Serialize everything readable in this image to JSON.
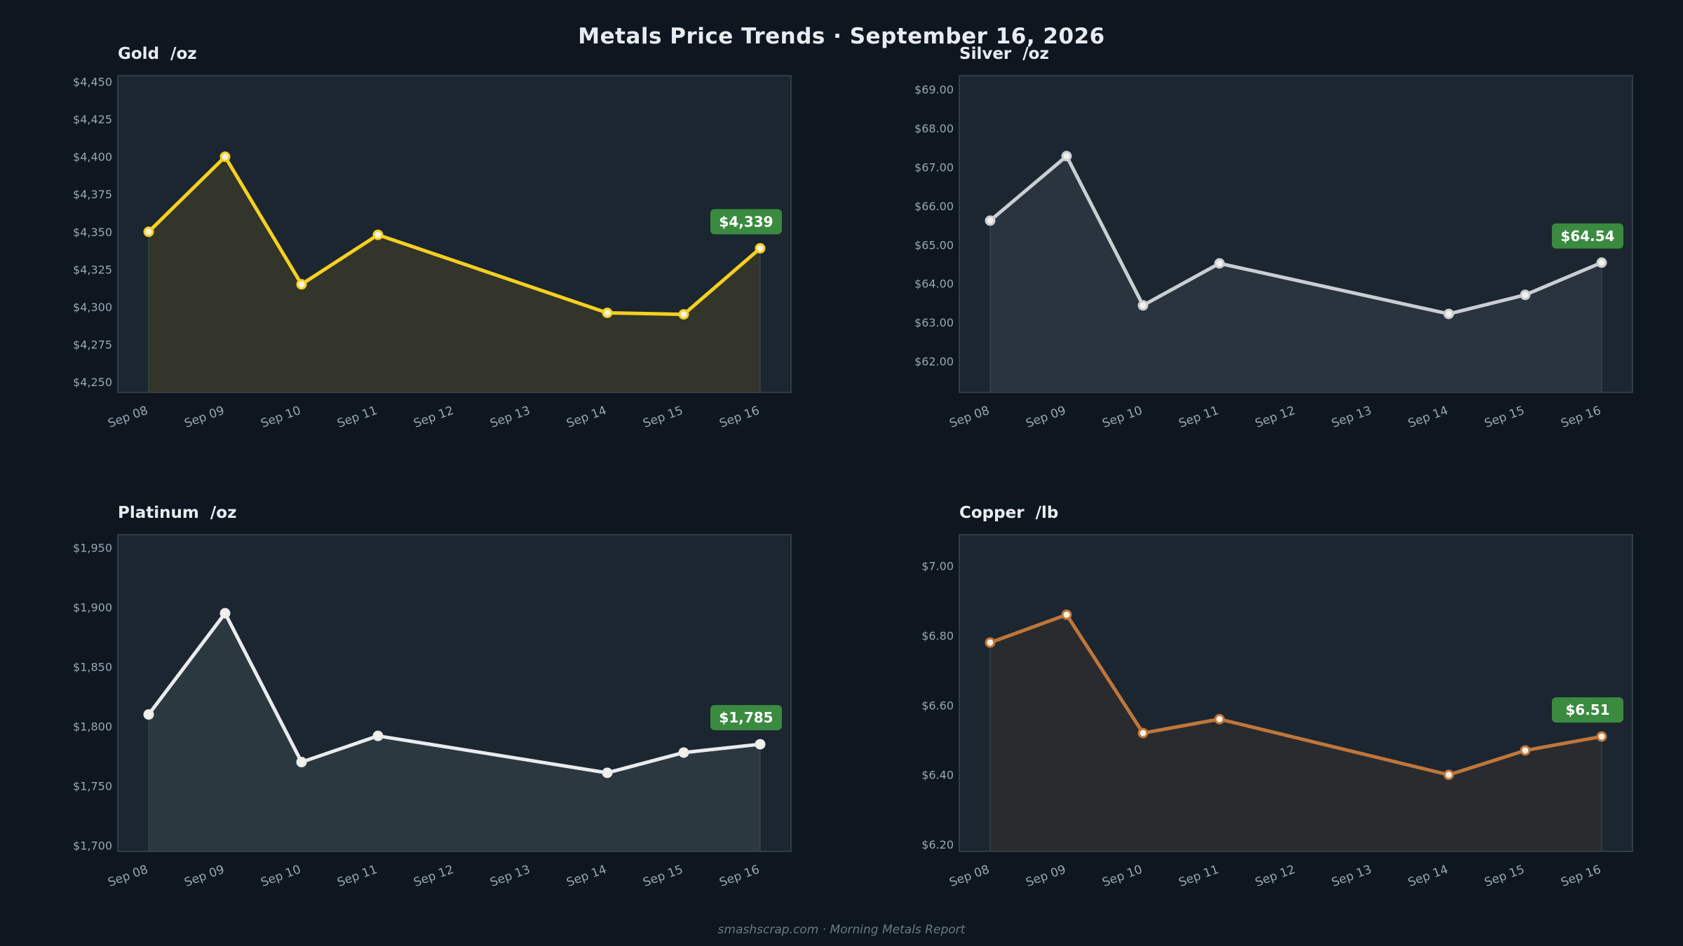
{
  "title": "Metals Price Trends  ·  September 16, 2026",
  "footer": "smashscrap.com  ·  Morning Metals Report",
  "colors": {
    "background": "#0e1720",
    "plot_bg": "#1b2630",
    "badge": "#3a8a3f",
    "gold": "#f5d020",
    "silver": "#c9ced3",
    "platinum": "#e9ecef",
    "copper": "#c0763a"
  },
  "chart_data": [
    {
      "type": "area",
      "title": "Gold  /oz",
      "x_categories": [
        "Sep 08",
        "Sep 09",
        "Sep 10",
        "Sep 11",
        "Sep 12",
        "Sep 13",
        "Sep 14",
        "Sep 15",
        "Sep 16"
      ],
      "series": [
        {
          "x": [
            "Sep 08",
            "Sep 09",
            "Sep 10",
            "Sep 11",
            "Sep 14",
            "Sep 15",
            "Sep 16"
          ],
          "values": [
            4350,
            4400,
            4315,
            4348,
            4296,
            4295,
            4339
          ],
          "color": "#f5d020",
          "fill": "#33352a"
        }
      ],
      "y_ticks": [
        "$4,250",
        "$4,275",
        "$4,300",
        "$4,325",
        "$4,350",
        "$4,375",
        "$4,400",
        "$4,425",
        "$4,450"
      ],
      "ylim": [
        4243,
        4454
      ],
      "latest_label": "$4,339"
    },
    {
      "type": "area",
      "title": "Silver  /oz",
      "x_categories": [
        "Sep 08",
        "Sep 09",
        "Sep 10",
        "Sep 11",
        "Sep 12",
        "Sep 13",
        "Sep 14",
        "Sep 15",
        "Sep 16"
      ],
      "series": [
        {
          "x": [
            "Sep 08",
            "Sep 09",
            "Sep 10",
            "Sep 11",
            "Sep 14",
            "Sep 15",
            "Sep 16"
          ],
          "values": [
            65.62,
            67.28,
            63.44,
            64.52,
            63.22,
            63.71,
            64.54
          ],
          "color": "#c9ced3",
          "fill": "#29343e"
        }
      ],
      "y_ticks": [
        "$62.00",
        "$63.00",
        "$64.00",
        "$65.00",
        "$66.00",
        "$67.00",
        "$68.00",
        "$69.00"
      ],
      "ylim": [
        61.2,
        69.35
      ],
      "latest_label": "$64.54"
    },
    {
      "type": "area",
      "title": "Platinum  /oz",
      "x_categories": [
        "Sep 08",
        "Sep 09",
        "Sep 10",
        "Sep 11",
        "Sep 12",
        "Sep 13",
        "Sep 14",
        "Sep 15",
        "Sep 16"
      ],
      "series": [
        {
          "x": [
            "Sep 08",
            "Sep 09",
            "Sep 10",
            "Sep 11",
            "Sep 14",
            "Sep 15",
            "Sep 16"
          ],
          "values": [
            1810,
            1895,
            1770,
            1792,
            1761,
            1778,
            1785
          ],
          "color": "#e9ecef",
          "fill": "#2c3840"
        }
      ],
      "y_ticks": [
        "$1,700",
        "$1,750",
        "$1,800",
        "$1,850",
        "$1,900",
        "$1,950"
      ],
      "ylim": [
        1695,
        1961
      ],
      "latest_label": "$1,785"
    },
    {
      "type": "area",
      "title": "Copper  /lb",
      "x_categories": [
        "Sep 08",
        "Sep 09",
        "Sep 10",
        "Sep 11",
        "Sep 12",
        "Sep 13",
        "Sep 14",
        "Sep 15",
        "Sep 16"
      ],
      "series": [
        {
          "x": [
            "Sep 08",
            "Sep 09",
            "Sep 10",
            "Sep 11",
            "Sep 14",
            "Sep 15",
            "Sep 16"
          ],
          "values": [
            6.78,
            6.86,
            6.52,
            6.56,
            6.4,
            6.47,
            6.51
          ],
          "color": "#c0763a",
          "fill": "#2a2b2e"
        }
      ],
      "y_ticks": [
        "$6.20",
        "$6.40",
        "$6.60",
        "$6.80",
        "$7.00"
      ],
      "ylim": [
        6.18,
        7.09
      ],
      "latest_label": "$6.51"
    }
  ]
}
